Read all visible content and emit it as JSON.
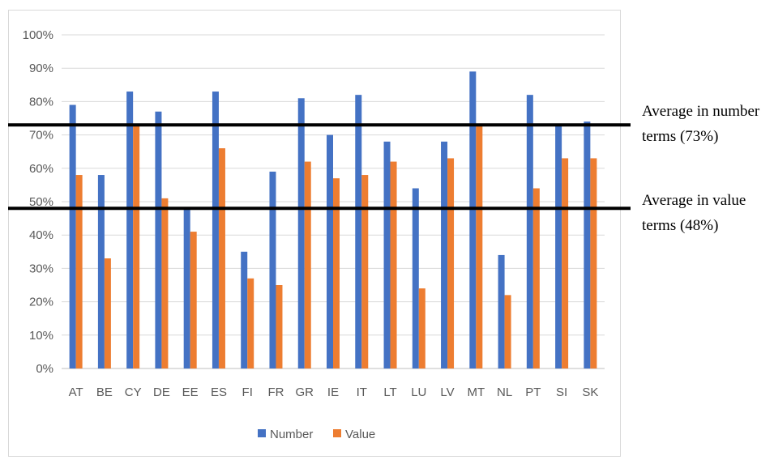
{
  "chart_data": {
    "type": "bar",
    "categories": [
      "AT",
      "BE",
      "CY",
      "DE",
      "EE",
      "ES",
      "FI",
      "FR",
      "GR",
      "IE",
      "IT",
      "LT",
      "LU",
      "LV",
      "MT",
      "NL",
      "PT",
      "SI",
      "SK"
    ],
    "series": [
      {
        "name": "Number",
        "color": "#4472C4",
        "values": [
          79,
          58,
          83,
          77,
          48,
          83,
          35,
          59,
          81,
          70,
          82,
          68,
          54,
          68,
          89,
          34,
          82,
          73,
          74
        ]
      },
      {
        "name": "Value",
        "color": "#ED7D31",
        "values": [
          58,
          33,
          73,
          51,
          41,
          66,
          27,
          25,
          62,
          57,
          58,
          62,
          24,
          63,
          73,
          22,
          54,
          63,
          63
        ]
      }
    ],
    "y_ticks": [
      "0%",
      "10%",
      "20%",
      "30%",
      "40%",
      "50%",
      "60%",
      "70%",
      "80%",
      "90%",
      "100%"
    ],
    "ylim": [
      0,
      100
    ],
    "grid": true,
    "legend_position": "bottom",
    "reference_lines": [
      {
        "value": 73,
        "label_line1": "Average in number",
        "label_line2": "terms (73%)"
      },
      {
        "value": 48,
        "label_line1": "Average in value",
        "label_line2": "terms (48%)"
      }
    ]
  }
}
